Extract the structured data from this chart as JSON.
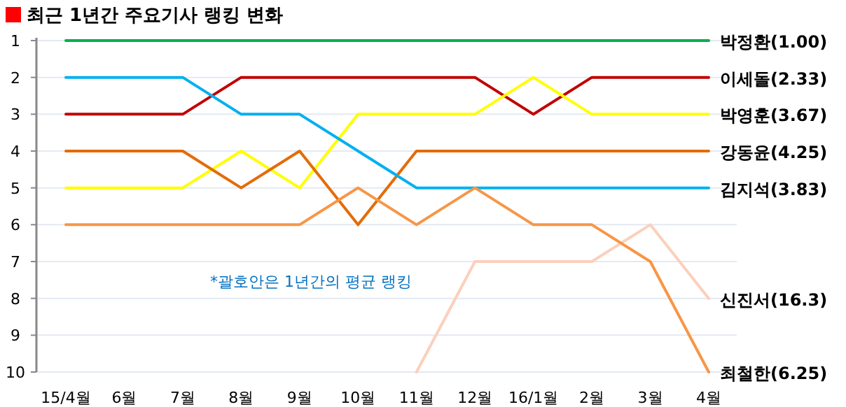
{
  "chart_data": {
    "type": "line",
    "title": "최근 1년간 주요기사 랭킹 변화",
    "categories": [
      "15/4월",
      "6월",
      "7월",
      "8월",
      "9월",
      "10월",
      "11월",
      "12월",
      "16/1월",
      "2월",
      "3월",
      "4월"
    ],
    "ylim": [
      10,
      1
    ],
    "yticks": [
      1,
      2,
      3,
      4,
      5,
      6,
      7,
      8,
      9,
      10
    ],
    "grid": "y",
    "marker": "none",
    "line_style": "solid",
    "annotations": [
      "*괄호안은 1년간의 평균 랭킹"
    ],
    "series": [
      {
        "name": "박정환(1.00)",
        "color": "#00b050",
        "values": [
          1,
          1,
          1,
          1,
          1,
          1,
          1,
          1,
          1,
          1,
          1,
          1
        ]
      },
      {
        "name": "이세돌(2.33)",
        "color": "#c00000",
        "values": [
          3,
          3,
          3,
          2,
          2,
          2,
          2,
          2,
          3,
          2,
          2,
          2
        ]
      },
      {
        "name": "박영훈(3.67)",
        "color": "#ffff00",
        "values": [
          5,
          5,
          5,
          4,
          5,
          3,
          3,
          3,
          2,
          3,
          3,
          3
        ]
      },
      {
        "name": "강동윤(4.25)",
        "color": "#e36c09",
        "values": [
          4,
          4,
          4,
          5,
          4,
          6,
          4,
          4,
          4,
          4,
          4,
          4
        ]
      },
      {
        "name": "김지석(3.83)",
        "color": "#00b0f0",
        "values": [
          2,
          2,
          2,
          3,
          3,
          4,
          5,
          5,
          5,
          5,
          5,
          5
        ]
      },
      {
        "name": "신진서(16.3)",
        "color": "#fbd0bc",
        "values": [
          null,
          null,
          null,
          null,
          null,
          null,
          10,
          7,
          7,
          7,
          6,
          8
        ]
      },
      {
        "name": "최철한(6.25)",
        "color": "#f79646",
        "values": [
          6,
          6,
          6,
          6,
          6,
          5,
          6,
          5,
          6,
          6,
          7,
          10
        ]
      }
    ]
  }
}
